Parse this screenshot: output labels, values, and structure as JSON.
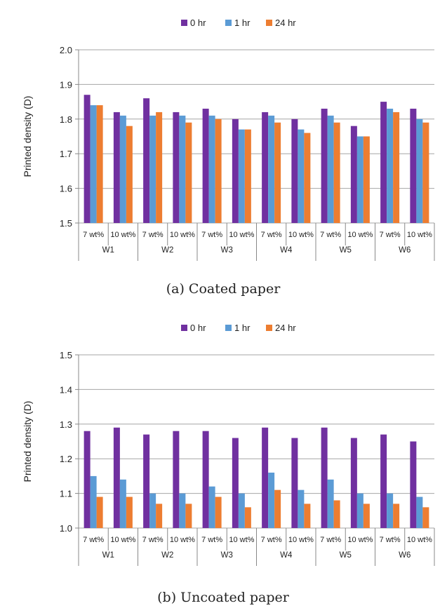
{
  "chart_data": [
    {
      "type": "bar",
      "caption": "(a) Coated paper",
      "ylabel": "Printed density (D)",
      "xlabel": "",
      "ylim": [
        1.5,
        2.0
      ],
      "yticks": [
        "1.5",
        "1.6",
        "1.7",
        "1.8",
        "1.9",
        "2.0"
      ],
      "groups": [
        "W1",
        "W2",
        "W3",
        "W4",
        "W5",
        "W6"
      ],
      "subcategories": [
        "7 wt%",
        "10 wt%"
      ],
      "categories": [
        "W1 7 wt%",
        "W1 10 wt%",
        "W2 7 wt%",
        "W2 10 wt%",
        "W3 7 wt%",
        "W3 10 wt%",
        "W4 7 wt%",
        "W4 10 wt%",
        "W5 7 wt%",
        "W5 10 wt%",
        "W6 7 wt%",
        "W6 10 wt%"
      ],
      "legend_position": "top",
      "grid": "horizontal",
      "series": [
        {
          "name": "0 hr",
          "color": "#7030a0",
          "values": [
            1.87,
            1.82,
            1.86,
            1.82,
            1.83,
            1.8,
            1.82,
            1.8,
            1.83,
            1.78,
            1.85,
            1.83
          ]
        },
        {
          "name": "1 hr",
          "color": "#5b9bd5",
          "values": [
            1.84,
            1.81,
            1.81,
            1.81,
            1.81,
            1.77,
            1.81,
            1.77,
            1.81,
            1.75,
            1.83,
            1.8
          ]
        },
        {
          "name": "24 hr",
          "color": "#ed7d31",
          "values": [
            1.84,
            1.78,
            1.82,
            1.79,
            1.8,
            1.77,
            1.79,
            1.76,
            1.79,
            1.75,
            1.82,
            1.79
          ]
        }
      ]
    },
    {
      "type": "bar",
      "caption": "(b) Uncoated paper",
      "ylabel": "Printed density (D)",
      "xlabel": "",
      "ylim": [
        1.0,
        1.5
      ],
      "yticks": [
        "1.0",
        "1.1",
        "1.2",
        "1.3",
        "1.4",
        "1.5"
      ],
      "groups": [
        "W1",
        "W2",
        "W3",
        "W4",
        "W5",
        "W6"
      ],
      "subcategories": [
        "7 wt%",
        "10 wt%"
      ],
      "categories": [
        "W1 7 wt%",
        "W1 10 wt%",
        "W2 7 wt%",
        "W2 10 wt%",
        "W3 7 wt%",
        "W3 10 wt%",
        "W4 7 wt%",
        "W4 10 wt%",
        "W5 7 wt%",
        "W5 10 wt%",
        "W6 7 wt%",
        "W6 10 wt%"
      ],
      "legend_position": "top",
      "grid": "horizontal",
      "series": [
        {
          "name": "0 hr",
          "color": "#7030a0",
          "values": [
            1.28,
            1.29,
            1.27,
            1.28,
            1.28,
            1.26,
            1.29,
            1.26,
            1.29,
            1.26,
            1.27,
            1.25
          ]
        },
        {
          "name": "1 hr",
          "color": "#5b9bd5",
          "values": [
            1.15,
            1.14,
            1.1,
            1.1,
            1.12,
            1.1,
            1.16,
            1.11,
            1.14,
            1.1,
            1.1,
            1.09
          ]
        },
        {
          "name": "24 hr",
          "color": "#ed7d31",
          "values": [
            1.09,
            1.09,
            1.07,
            1.07,
            1.09,
            1.06,
            1.11,
            1.07,
            1.08,
            1.07,
            1.07,
            1.06
          ]
        }
      ]
    }
  ]
}
